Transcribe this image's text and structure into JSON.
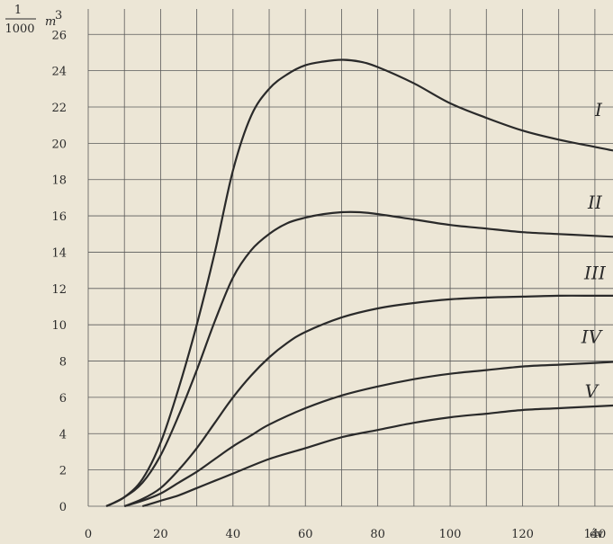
{
  "chart_data": {
    "type": "line",
    "title": "",
    "ylabel_num": "1",
    "ylabel_den": "1000",
    "ylabel_unit": "m",
    "ylabel_exp": "3",
    "xlabel": "év",
    "xlim": [
      0,
      145
    ],
    "ylim": [
      0,
      27.4
    ],
    "x_ticks": [
      0,
      20,
      40,
      60,
      80,
      100,
      120,
      140
    ],
    "y_ticks": [
      0,
      2,
      4,
      6,
      8,
      10,
      12,
      14,
      16,
      18,
      20,
      22,
      24,
      26
    ],
    "x_tick_labels": [
      "0",
      "20",
      "40",
      "60",
      "80",
      "100",
      "120",
      "140"
    ],
    "y_tick_labels": [
      "0",
      "2",
      "4",
      "6",
      "8",
      "10",
      "12",
      "14",
      "16",
      "18",
      "20",
      "22",
      "24",
      "26"
    ],
    "grid": true,
    "series": [
      {
        "name": "I",
        "points": [
          [
            5,
            0
          ],
          [
            10,
            0.5
          ],
          [
            15,
            1.5
          ],
          [
            20,
            3.5
          ],
          [
            25,
            6.5
          ],
          [
            30,
            10
          ],
          [
            35,
            14
          ],
          [
            40,
            18.5
          ],
          [
            45,
            21.5
          ],
          [
            50,
            23
          ],
          [
            55,
            23.8
          ],
          [
            60,
            24.3
          ],
          [
            65,
            24.5
          ],
          [
            70,
            24.6
          ],
          [
            75,
            24.5
          ],
          [
            80,
            24.2
          ],
          [
            90,
            23.3
          ],
          [
            100,
            22.2
          ],
          [
            110,
            21.4
          ],
          [
            120,
            20.7
          ],
          [
            130,
            20.2
          ],
          [
            140,
            19.8
          ],
          [
            145,
            19.6
          ]
        ]
      },
      {
        "name": "II",
        "points": [
          [
            5,
            0
          ],
          [
            10,
            0.5
          ],
          [
            15,
            1.3
          ],
          [
            20,
            2.8
          ],
          [
            25,
            5
          ],
          [
            30,
            7.5
          ],
          [
            35,
            10.2
          ],
          [
            40,
            12.6
          ],
          [
            45,
            14.1
          ],
          [
            50,
            15
          ],
          [
            55,
            15.6
          ],
          [
            60,
            15.9
          ],
          [
            65,
            16.1
          ],
          [
            70,
            16.2
          ],
          [
            75,
            16.2
          ],
          [
            80,
            16.1
          ],
          [
            90,
            15.8
          ],
          [
            100,
            15.5
          ],
          [
            110,
            15.3
          ],
          [
            120,
            15.1
          ],
          [
            130,
            15
          ],
          [
            140,
            14.9
          ],
          [
            145,
            14.85
          ]
        ]
      },
      {
        "name": "III",
        "points": [
          [
            10,
            0
          ],
          [
            15,
            0.4
          ],
          [
            20,
            1
          ],
          [
            25,
            2
          ],
          [
            30,
            3.2
          ],
          [
            35,
            4.6
          ],
          [
            40,
            6
          ],
          [
            45,
            7.2
          ],
          [
            50,
            8.2
          ],
          [
            55,
            9
          ],
          [
            60,
            9.6
          ],
          [
            70,
            10.4
          ],
          [
            80,
            10.9
          ],
          [
            90,
            11.2
          ],
          [
            100,
            11.4
          ],
          [
            110,
            11.5
          ],
          [
            120,
            11.55
          ],
          [
            130,
            11.6
          ],
          [
            140,
            11.6
          ],
          [
            145,
            11.6
          ]
        ]
      },
      {
        "name": "IV",
        "points": [
          [
            10,
            0
          ],
          [
            15,
            0.3
          ],
          [
            20,
            0.7
          ],
          [
            25,
            1.3
          ],
          [
            30,
            1.9
          ],
          [
            35,
            2.6
          ],
          [
            40,
            3.3
          ],
          [
            45,
            3.9
          ],
          [
            50,
            4.5
          ],
          [
            60,
            5.4
          ],
          [
            70,
            6.1
          ],
          [
            80,
            6.6
          ],
          [
            90,
            7
          ],
          [
            100,
            7.3
          ],
          [
            110,
            7.5
          ],
          [
            120,
            7.7
          ],
          [
            130,
            7.8
          ],
          [
            140,
            7.9
          ],
          [
            145,
            7.95
          ]
        ]
      },
      {
        "name": "V",
        "points": [
          [
            15,
            0
          ],
          [
            20,
            0.3
          ],
          [
            25,
            0.6
          ],
          [
            30,
            1
          ],
          [
            35,
            1.4
          ],
          [
            40,
            1.8
          ],
          [
            50,
            2.6
          ],
          [
            60,
            3.2
          ],
          [
            70,
            3.8
          ],
          [
            80,
            4.2
          ],
          [
            90,
            4.6
          ],
          [
            100,
            4.9
          ],
          [
            110,
            5.1
          ],
          [
            120,
            5.3
          ],
          [
            130,
            5.4
          ],
          [
            140,
            5.5
          ],
          [
            145,
            5.55
          ]
        ]
      }
    ],
    "series_labels": [
      {
        "text": "I",
        "at": [
          141,
          21.5
        ]
      },
      {
        "text": "II",
        "at": [
          140,
          16.4
        ]
      },
      {
        "text": "III",
        "at": [
          140,
          12.5
        ]
      },
      {
        "text": "IV",
        "at": [
          139,
          9
        ]
      },
      {
        "text": "V",
        "at": [
          139,
          6
        ]
      }
    ]
  }
}
